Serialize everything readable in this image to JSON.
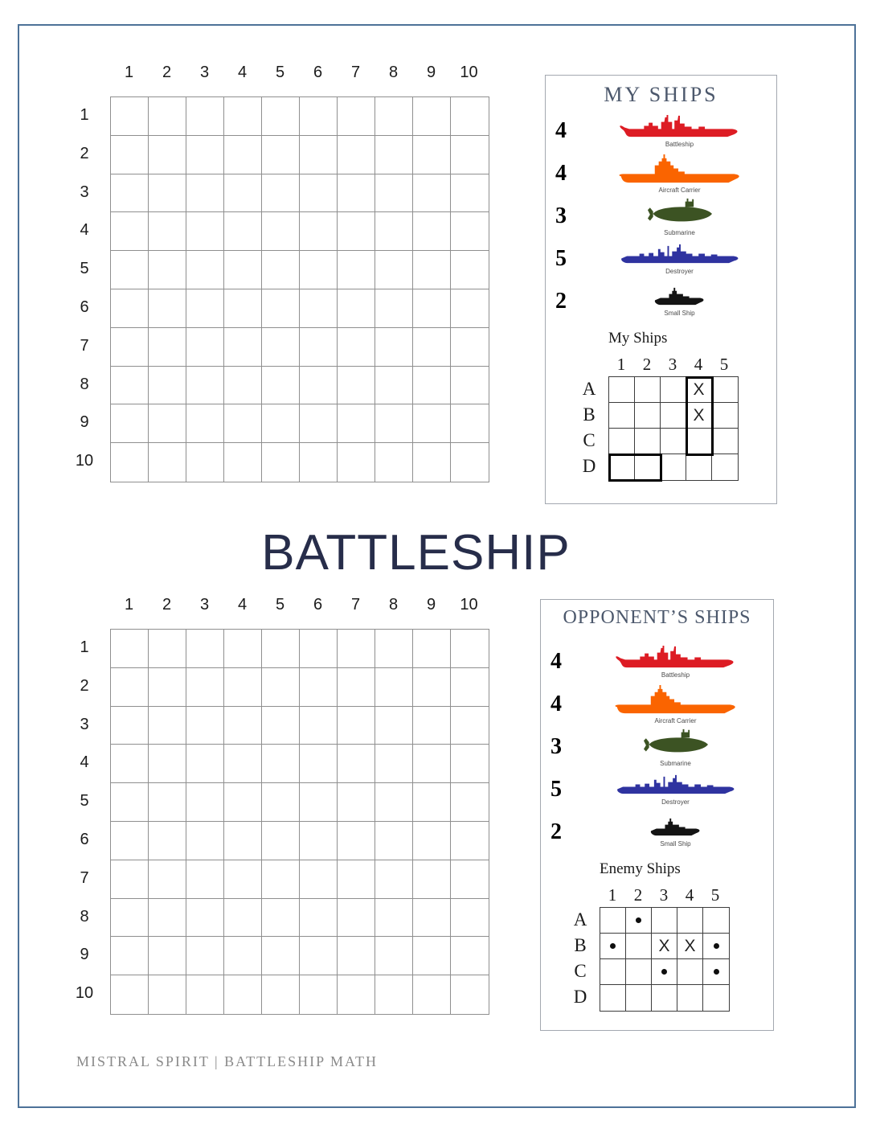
{
  "page": {
    "title": "BATTLESHIP",
    "footer": "MISTRAL SPIRIT | BATTLESHIP MATH"
  },
  "board": {
    "column_labels": [
      "1",
      "2",
      "3",
      "4",
      "5",
      "6",
      "7",
      "8",
      "9",
      "10"
    ],
    "row_labels": [
      "1",
      "2",
      "3",
      "4",
      "5",
      "6",
      "7",
      "8",
      "9",
      "10"
    ]
  },
  "ships": [
    {
      "size": "4",
      "label": "Battleship",
      "color": "#dd1c24",
      "icon": "battleship-icon"
    },
    {
      "size": "4",
      "label": "Aircraft Carrier",
      "color": "#fa6400",
      "icon": "aircraft-carrier-icon"
    },
    {
      "size": "3",
      "label": "Submarine",
      "color": "#3c5323",
      "icon": "submarine-icon"
    },
    {
      "size": "5",
      "label": "Destroyer",
      "color": "#2f33a0",
      "icon": "destroyer-icon"
    },
    {
      "size": "2",
      "label": "Small Ship",
      "color": "#141414",
      "icon": "small-ship-icon"
    }
  ],
  "my_ships_panel": {
    "title": "MY SHIPS",
    "tracker": {
      "title": "My Ships",
      "column_labels": [
        "1",
        "2",
        "3",
        "4",
        "5"
      ],
      "row_labels": [
        "A",
        "B",
        "C",
        "D"
      ],
      "marks": [
        {
          "cell": "A4",
          "mark": "X"
        },
        {
          "cell": "B4",
          "mark": "X"
        }
      ],
      "ship_outlines": [
        "A4:C4",
        "D1:D2"
      ]
    }
  },
  "opponent_panel": {
    "title": "OPPONENT’S SHIPS",
    "tracker": {
      "title": "Enemy Ships",
      "column_labels": [
        "1",
        "2",
        "3",
        "4",
        "5"
      ],
      "row_labels": [
        "A",
        "B",
        "C",
        "D"
      ],
      "marks": [
        {
          "cell": "A2",
          "mark": "dot"
        },
        {
          "cell": "B1",
          "mark": "dot"
        },
        {
          "cell": "B3",
          "mark": "X"
        },
        {
          "cell": "B4",
          "mark": "X"
        },
        {
          "cell": "B5",
          "mark": "dot"
        },
        {
          "cell": "C3",
          "mark": "dot"
        },
        {
          "cell": "C5",
          "mark": "dot"
        }
      ],
      "ship_outlines": []
    }
  }
}
